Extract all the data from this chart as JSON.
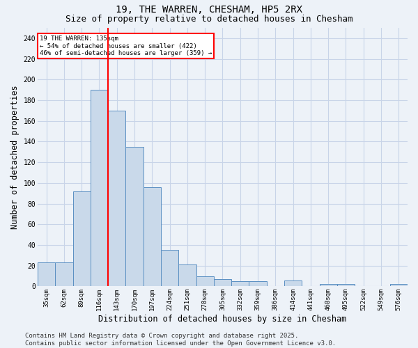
{
  "title1": "19, THE WARREN, CHESHAM, HP5 2RX",
  "title2": "Size of property relative to detached houses in Chesham",
  "xlabel": "Distribution of detached houses by size in Chesham",
  "ylabel": "Number of detached properties",
  "categories": [
    "35sqm",
    "62sqm",
    "89sqm",
    "116sqm",
    "143sqm",
    "170sqm",
    "197sqm",
    "224sqm",
    "251sqm",
    "278sqm",
    "305sqm",
    "332sqm",
    "359sqm",
    "386sqm",
    "414sqm",
    "441sqm",
    "468sqm",
    "495sqm",
    "522sqm",
    "549sqm",
    "576sqm"
  ],
  "values": [
    23,
    23,
    92,
    190,
    170,
    135,
    96,
    35,
    21,
    10,
    7,
    5,
    5,
    0,
    6,
    0,
    2,
    2,
    0,
    0,
    2
  ],
  "bar_face_color": "#c9d9ea",
  "bar_edge_color": "#5a8fc2",
  "redline_index": 3.5,
  "annotation_text": "19 THE WARREN: 135sqm\n← 54% of detached houses are smaller (422)\n46% of semi-detached houses are larger (359) →",
  "annotation_box_color": "white",
  "annotation_box_edgecolor": "red",
  "footer": "Contains HM Land Registry data © Crown copyright and database right 2025.\nContains public sector information licensed under the Open Government Licence v3.0.",
  "ylim": [
    0,
    250
  ],
  "yticks": [
    0,
    20,
    40,
    60,
    80,
    100,
    120,
    140,
    160,
    180,
    200,
    220,
    240
  ],
  "grid_color": "#c8d4e8",
  "background_color": "#edf2f8",
  "title_fontsize": 10,
  "subtitle_fontsize": 9,
  "tick_fontsize": 6.5,
  "label_fontsize": 8.5,
  "footer_fontsize": 6.5
}
